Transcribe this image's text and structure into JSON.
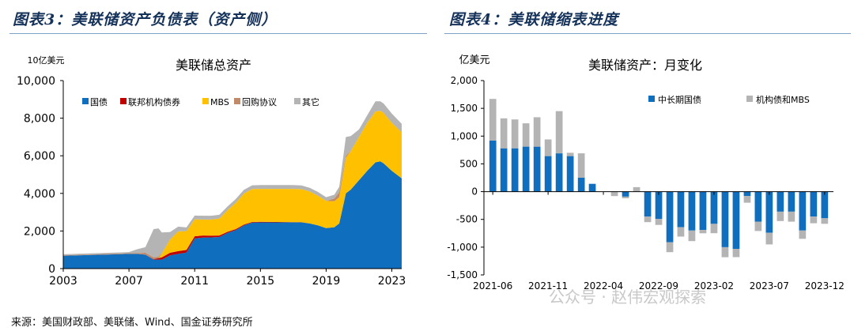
{
  "left_panel": {
    "heading": "图表3：美联储资产负债表（资产侧）",
    "unit": "10亿美元"
  },
  "right_panel": {
    "heading": "图表4：美联储缩表进度",
    "unit": "亿美元"
  },
  "source": "来源：美国财政部、美联储、Wind、国金证券研究所",
  "watermark": "公众号 · 赵伟宏观探索",
  "colors": {
    "blue": "#0f6ebd",
    "red": "#c00000",
    "yellow": "#ffc000",
    "brown": "#c08a68",
    "gray": "#b4b4b4"
  },
  "chart_data": [
    {
      "type": "area",
      "stacked": true,
      "title": "美联储总资产",
      "xlabel": "",
      "ylabel": "10亿美元",
      "ylim": [
        0,
        10000
      ],
      "yticks": [
        0,
        2000,
        4000,
        6000,
        8000,
        10000
      ],
      "ytick_labels": [
        "0",
        "2,000",
        "4,000",
        "6,000",
        "8,000",
        "10,000"
      ],
      "xticks": [
        2003,
        2007,
        2011,
        2015,
        2019,
        2023
      ],
      "x": [
        2003.0,
        2007.0,
        2007.5,
        2008.0,
        2008.5,
        2008.8,
        2009.0,
        2009.5,
        2010.0,
        2010.5,
        2011.0,
        2011.5,
        2012.0,
        2012.5,
        2013.0,
        2013.5,
        2014.0,
        2014.5,
        2015.0,
        2016.0,
        2017.0,
        2017.5,
        2018.0,
        2018.5,
        2019.0,
        2019.5,
        2019.8,
        2020.2,
        2020.5,
        2021.0,
        2021.5,
        2022.0,
        2022.3,
        2022.5,
        2023.0,
        2023.6
      ],
      "series": [
        {
          "name": "国债",
          "color": "#0f6ebd",
          "values": [
            680,
            780,
            780,
            740,
            480,
            480,
            480,
            700,
            780,
            850,
            1600,
            1650,
            1660,
            1680,
            1900,
            2050,
            2300,
            2450,
            2460,
            2460,
            2460,
            2460,
            2400,
            2300,
            2150,
            2200,
            2400,
            4000,
            4200,
            4700,
            5200,
            5650,
            5700,
            5600,
            5200,
            4800
          ]
        },
        {
          "name": "联邦机构债券",
          "color": "#c00000",
          "values": [
            0,
            0,
            0,
            0,
            20,
            80,
            120,
            140,
            150,
            140,
            120,
            110,
            90,
            80,
            60,
            50,
            40,
            30,
            30,
            20,
            10,
            5,
            0,
            0,
            0,
            0,
            0,
            0,
            0,
            0,
            0,
            0,
            0,
            0,
            0,
            0
          ]
        },
        {
          "name": "MBS",
          "color": "#ffc000",
          "values": [
            0,
            0,
            0,
            0,
            0,
            0,
            200,
            700,
            1050,
            1000,
            900,
            850,
            860,
            900,
            1150,
            1400,
            1650,
            1750,
            1750,
            1760,
            1770,
            1760,
            1700,
            1580,
            1450,
            1380,
            1400,
            1900,
            2050,
            2300,
            2550,
            2700,
            2700,
            2680,
            2550,
            2450
          ]
        },
        {
          "name": "回购协议",
          "color": "#c08a68",
          "values": [
            30,
            40,
            50,
            100,
            100,
            80,
            20,
            0,
            0,
            0,
            0,
            0,
            0,
            0,
            0,
            0,
            0,
            0,
            0,
            0,
            0,
            0,
            0,
            0,
            0,
            150,
            250,
            100,
            0,
            0,
            0,
            0,
            0,
            0,
            0,
            0
          ]
        },
        {
          "name": "其它",
          "color": "#b4b4b4",
          "values": [
            50,
            60,
            200,
            300,
            1500,
            1500,
            1100,
            400,
            250,
            200,
            200,
            200,
            200,
            200,
            200,
            200,
            200,
            200,
            200,
            200,
            200,
            200,
            200,
            200,
            200,
            200,
            300,
            1000,
            800,
            400,
            400,
            550,
            500,
            500,
            500,
            450
          ]
        }
      ],
      "legend_position": "top-left"
    },
    {
      "type": "bar",
      "stacked": true,
      "title": "美联储资产：月变化",
      "xlabel": "",
      "ylabel": "亿美元",
      "ylim": [
        -1500,
        2000
      ],
      "yticks": [
        -1500,
        -1000,
        -500,
        0,
        500,
        1000,
        1500,
        2000
      ],
      "ytick_labels": [
        "-1,500",
        "-1,000",
        "-500",
        "0",
        "500",
        "1,000",
        "1,500",
        "2,000"
      ],
      "categories": [
        "2021-06",
        "2021-07",
        "2021-08",
        "2021-09",
        "2021-10",
        "2021-11",
        "2021-12",
        "2022-01",
        "2022-02",
        "2022-03",
        "2022-04",
        "2022-05",
        "2022-06",
        "2022-07",
        "2022-08",
        "2022-09",
        "2022-10",
        "2022-11",
        "2022-12",
        "2023-01",
        "2023-02",
        "2023-03",
        "2023-04",
        "2023-05",
        "2023-06",
        "2023-07",
        "2023-08",
        "2023-09",
        "2023-10",
        "2023-11",
        "2023-12"
      ],
      "tick_labels": [
        "2021-06",
        "2021-11",
        "2022-04",
        "2022-09",
        "2023-02",
        "2023-07",
        "2023-12"
      ],
      "series": [
        {
          "name": "中长期国债",
          "color": "#0f6ebd",
          "values": [
            920,
            780,
            780,
            810,
            810,
            640,
            690,
            640,
            250,
            140,
            0,
            0,
            -90,
            0,
            -450,
            -490,
            -910,
            -640,
            -700,
            -690,
            -580,
            -1000,
            -1030,
            -80,
            -540,
            -740,
            -360,
            -360,
            -700,
            -450,
            -480
          ]
        },
        {
          "name": "机构债和MBS",
          "color": "#b4b4b4",
          "values": [
            750,
            540,
            520,
            420,
            530,
            300,
            760,
            60,
            440,
            0,
            0,
            -80,
            -30,
            80,
            -100,
            -110,
            -180,
            -170,
            -190,
            -60,
            -170,
            -180,
            -150,
            -120,
            -170,
            -210,
            -170,
            -180,
            -150,
            -120,
            -100
          ]
        }
      ],
      "legend_position": "top-right"
    }
  ]
}
